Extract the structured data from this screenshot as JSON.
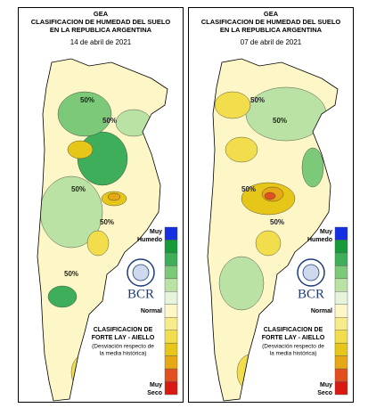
{
  "panels": [
    {
      "title_lines": [
        "GEA",
        "CLASIFICACION DE HUMEDAD DEL SUELO",
        "EN LA REPUBLICA ARGENTINA"
      ],
      "date": "14 de abril de 2021",
      "contour_labels": [
        "50%",
        "50%",
        "50%",
        "50%",
        "50%"
      ],
      "blobs": [
        [
          "#3fae5a",
          95,
          170,
          28,
          30
        ],
        [
          "#7cc97a",
          75,
          120,
          30,
          25
        ],
        [
          "#b9e2a4",
          60,
          230,
          35,
          40
        ],
        [
          "#3fae5a",
          50,
          325,
          16,
          12
        ],
        [
          "#e6c619",
          70,
          160,
          14,
          10
        ],
        [
          "#e6c619",
          108,
          215,
          14,
          8
        ],
        [
          "#f2de4c",
          90,
          265,
          12,
          14
        ],
        [
          "#f2de4c",
          75,
          410,
          15,
          20
        ],
        [
          "#b9e2a4",
          130,
          130,
          20,
          15
        ],
        [
          "#e6a814",
          108,
          213,
          7,
          4
        ]
      ]
    },
    {
      "title_lines": [
        "GEA",
        "CLASIFICACION DE HUMEDAD DEL SUELO",
        "EN LA REPUBLICA ARGENTINA"
      ],
      "date": "07 de abril de 2021",
      "contour_labels": [
        "50%",
        "50%",
        "50%",
        "50%"
      ],
      "blobs": [
        [
          "#b9e2a4",
          110,
          120,
          45,
          30
        ],
        [
          "#f2de4c",
          50,
          110,
          20,
          15
        ],
        [
          "#e6c619",
          90,
          215,
          30,
          18
        ],
        [
          "#e6a814",
          95,
          210,
          12,
          8
        ],
        [
          "#e2501f",
          92,
          212,
          6,
          4
        ],
        [
          "#f2de4c",
          90,
          265,
          14,
          14
        ],
        [
          "#b9e2a4",
          60,
          310,
          25,
          30
        ],
        [
          "#f2de4c",
          60,
          160,
          18,
          14
        ],
        [
          "#7cc97a",
          140,
          180,
          12,
          22
        ],
        [
          "#f2de4c",
          70,
          410,
          15,
          20
        ]
      ]
    }
  ],
  "legend": {
    "top": "Muy Humedo",
    "middle": "Normal",
    "bottom": "Muy Seco",
    "colors": [
      "#1530e0",
      "#169a3a",
      "#3fae5a",
      "#7cc97a",
      "#b9e2a4",
      "#e6f4dc",
      "#fdf7c8",
      "#f7ec8a",
      "#f2de4c",
      "#e6c619",
      "#e6a814",
      "#e2501f",
      "#d81a12"
    ]
  },
  "logo": "BCR",
  "method_lines": [
    "CLASIFICACION DE",
    "FORTE LAY - AIELLO"
  ],
  "note_lines": [
    "(Desviación respecto de",
    "la media histórica)"
  ]
}
